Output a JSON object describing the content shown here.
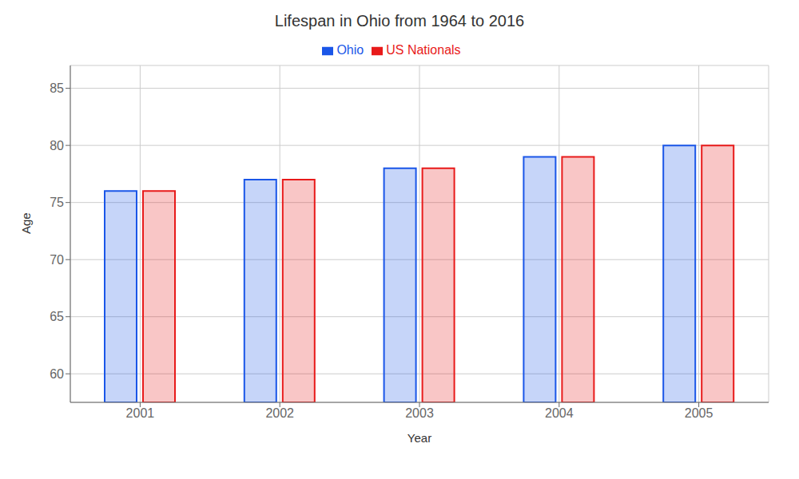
{
  "chart_data": {
    "type": "bar",
    "title": "Lifespan in Ohio from 1964 to 2016",
    "x_label": "Year",
    "y_label": "Age",
    "categories": [
      "2001",
      "2002",
      "2003",
      "2004",
      "2005"
    ],
    "series": [
      {
        "name": "Ohio",
        "color": "#1a56e8",
        "values": [
          76,
          77,
          78,
          79,
          80
        ]
      },
      {
        "name": "US Nationals",
        "color": "#e81a1a",
        "values": [
          76,
          77,
          78,
          79,
          80
        ]
      }
    ],
    "ylim": [
      57.5,
      87
    ],
    "yticks": [
      60,
      65,
      70,
      75,
      80,
      85
    ],
    "grid": true,
    "legend": "top"
  }
}
